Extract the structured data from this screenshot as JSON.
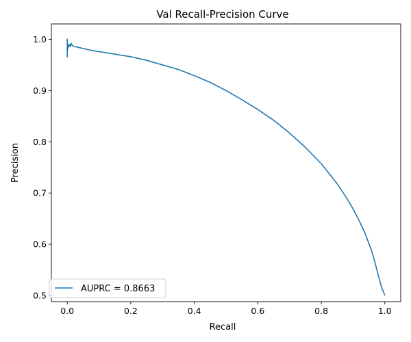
{
  "chart_data": {
    "type": "line",
    "title": "Val Recall-Precision Curve",
    "xlabel": "Recall",
    "ylabel": "Precision",
    "xlim": [
      -0.05,
      1.05
    ],
    "ylim": [
      0.488,
      1.03
    ],
    "xticks": [
      0.0,
      0.2,
      0.4,
      0.6,
      0.8,
      1.0
    ],
    "xtick_labels": [
      "0.0",
      "0.2",
      "0.4",
      "0.6",
      "0.8",
      "1.0"
    ],
    "yticks": [
      0.5,
      0.6,
      0.7,
      0.8,
      0.9,
      1.0
    ],
    "ytick_labels": [
      "0.5",
      "0.6",
      "0.7",
      "0.8",
      "0.9",
      "1.0"
    ],
    "grid": false,
    "legend_position": "lower-left",
    "series": [
      {
        "name": "AUPRC = 0.8663",
        "color": "#1f77b4",
        "x": [
          0.0,
          0.0,
          0.001,
          0.002,
          0.004,
          0.006,
          0.008,
          0.01,
          0.013,
          0.016,
          0.02,
          0.03,
          0.05,
          0.08,
          0.1,
          0.13,
          0.15,
          0.18,
          0.2,
          0.25,
          0.3,
          0.35,
          0.4,
          0.45,
          0.5,
          0.55,
          0.6,
          0.65,
          0.7,
          0.75,
          0.8,
          0.85,
          0.88,
          0.9,
          0.92,
          0.94,
          0.96,
          0.97,
          0.98,
          0.99,
          0.995,
          1.0
        ],
        "y": [
          0.965,
          1.0,
          0.978,
          0.99,
          0.985,
          0.988,
          0.99,
          0.986,
          0.992,
          0.988,
          0.986,
          0.985,
          0.982,
          0.978,
          0.976,
          0.973,
          0.971,
          0.968,
          0.966,
          0.959,
          0.95,
          0.941,
          0.929,
          0.916,
          0.9,
          0.882,
          0.863,
          0.842,
          0.817,
          0.789,
          0.757,
          0.718,
          0.69,
          0.669,
          0.645,
          0.618,
          0.584,
          0.562,
          0.538,
          0.515,
          0.508,
          0.5
        ]
      }
    ]
  }
}
